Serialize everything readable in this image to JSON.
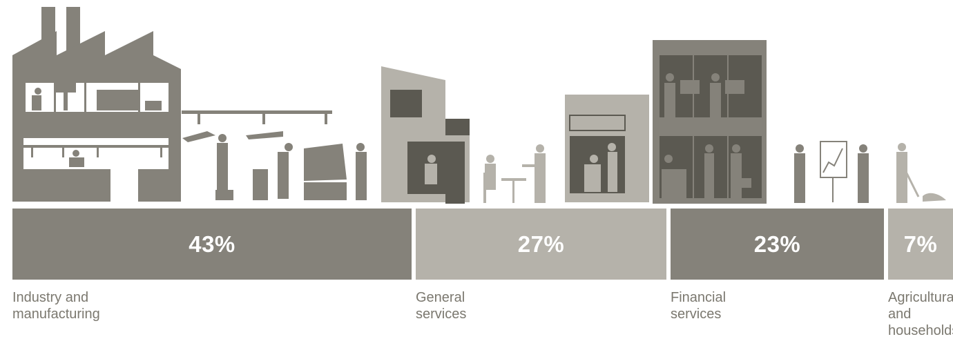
{
  "chart_data": {
    "type": "bar",
    "categories": [
      "Industry and\nmanufacturing",
      "General\nservices",
      "Financial\nservices",
      "Agricultural and\nhouseholds*"
    ],
    "values": [
      43,
      27,
      23,
      7
    ],
    "value_labels": [
      "43%",
      "27%",
      "23%",
      "7%"
    ],
    "unit": "%",
    "orientation": "horizontal-stacked",
    "colors": [
      "#85827a",
      "#b5b2aa",
      "#85827a",
      "#b5b2aa"
    ],
    "grid": false,
    "legend": "none"
  },
  "illustrations": [
    "factory-illustration",
    "restaurant-illustration",
    "office-illustration",
    "farmer-illustration"
  ],
  "colors": {
    "dark": "#85827a",
    "light": "#b5b2aa",
    "window": "#5b5951",
    "label": "#7b786f"
  }
}
